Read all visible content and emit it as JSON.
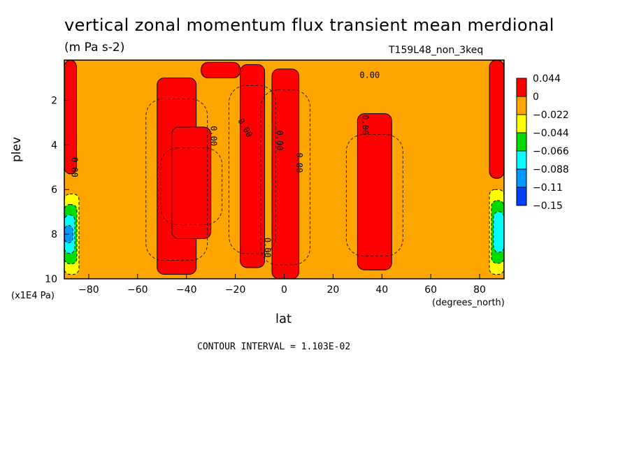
{
  "chart_data": {
    "type": "heatmap",
    "title": "vertical zonal momentum flux transient mean merdional",
    "units": "(m Pa s-2)",
    "run_label": "T159L48_non_3keq",
    "xlabel": "lat",
    "x_unit": "(degrees_north)",
    "ylabel": "plev",
    "y_unit": "(x1E4 Pa)",
    "xlim": [
      -90,
      90
    ],
    "ylim": [
      10,
      0.2
    ],
    "x_ticks": [
      "-80",
      "-60",
      "-40",
      "-20",
      "0",
      "20",
      "40",
      "60",
      "80"
    ],
    "y_ticks": [
      "2",
      "4",
      "6",
      "8",
      "10"
    ],
    "contour_interval": "CONTOUR INTERVAL = 1.103E-02",
    "contour_labels": [
      "0.00"
    ],
    "background_level": "0 to -0.022",
    "colorbar": {
      "levels": [
        "0.044",
        "0",
        "-0.022",
        "-0.044",
        "-0.066",
        "-0.088",
        "-0.11",
        "-0.15"
      ],
      "colors": [
        "#ff0000",
        "#ffa500",
        "#ffff00",
        "#00dd00",
        "#00ffff",
        "#0099ff",
        "#0040ff"
      ]
    },
    "positive_regions": [
      {
        "lat": [
          -52,
          -36
        ],
        "plev": [
          9.8,
          1.0
        ]
      },
      {
        "lat": [
          -34,
          -18
        ],
        "plev": [
          1.0,
          0.3
        ]
      },
      {
        "lat": [
          -46,
          -30
        ],
        "plev": [
          3.2,
          8.2
        ]
      },
      {
        "lat": [
          -18,
          -8
        ],
        "plev": [
          9.5,
          0.4
        ]
      },
      {
        "lat": [
          -5,
          6
        ],
        "plev": [
          0.6,
          10
        ]
      },
      {
        "lat": [
          30,
          44
        ],
        "plev": [
          2.6,
          9.6
        ]
      },
      {
        "lat": [
          -90,
          -85
        ],
        "plev": [
          0.2,
          5.3
        ]
      },
      {
        "lat": [
          84,
          90
        ],
        "plev": [
          0.2,
          5.5
        ]
      }
    ],
    "negative_regions": [
      {
        "lat": [
          -90,
          -84
        ],
        "plev": [
          6.2,
          9.8
        ],
        "min": -0.088
      },
      {
        "lat": [
          84,
          90
        ],
        "plev": [
          6.0,
          9.8
        ],
        "min": -0.066
      }
    ]
  }
}
